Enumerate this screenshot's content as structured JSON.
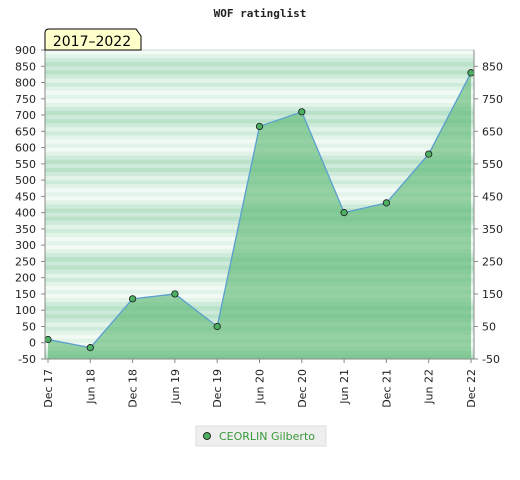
{
  "chart_data": {
    "type": "area",
    "title": "WOF ratinglist",
    "period_label": "2017–2022",
    "categories": [
      "Dec 17",
      "Jun 18",
      "Dec 18",
      "Jun 19",
      "Dec 19",
      "Jun 20",
      "Dec 20",
      "Jun 21",
      "Dec 21",
      "Jun 22",
      "Dec 22"
    ],
    "series": [
      {
        "name": "CEORLIN Gilberto",
        "values": [
          10,
          -15,
          135,
          150,
          50,
          665,
          710,
          400,
          430,
          580,
          830
        ]
      }
    ],
    "ylim": [
      -50,
      900
    ],
    "y_ticks_left": [
      -50,
      0,
      50,
      100,
      150,
      200,
      250,
      300,
      350,
      400,
      450,
      500,
      550,
      600,
      650,
      700,
      750,
      800,
      850,
      900
    ],
    "y_ticks_right": [
      -50,
      50,
      150,
      250,
      350,
      450,
      550,
      650,
      750,
      850
    ],
    "legend_position": "bottom",
    "colors": {
      "band_dark": "#9fd8b0",
      "band_light": "#eef8f1",
      "area_fill": "#5cb873",
      "line": "#5a9fd0",
      "marker": "#4caf62"
    }
  }
}
